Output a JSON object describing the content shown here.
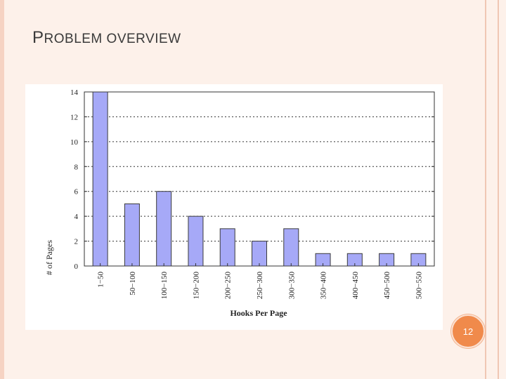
{
  "slide": {
    "title_first": "P",
    "title_rest": "ROBLEM OVERVIEW",
    "page_number": "12"
  },
  "colors": {
    "background": "#fdf1ea",
    "accent": "#f08a4b",
    "bar_fill": "#a6a9f7",
    "bar_stroke": "#3b3b3b"
  },
  "chart_data": {
    "type": "bar",
    "categories": [
      "1−50",
      "50−100",
      "100−150",
      "150−200",
      "200−250",
      "250−300",
      "300−350",
      "350−400",
      "400−450",
      "450−500",
      "500−550"
    ],
    "values": [
      14,
      5,
      6,
      4,
      3,
      2,
      3,
      1,
      1,
      1,
      1
    ],
    "xlabel": "Hooks Per Page",
    "ylabel": "# of Pages",
    "ylim": [
      0,
      14
    ],
    "yticks": [
      0,
      2,
      4,
      6,
      8,
      10,
      12,
      14
    ],
    "grid": "horizontal dashed",
    "legend": "none"
  }
}
